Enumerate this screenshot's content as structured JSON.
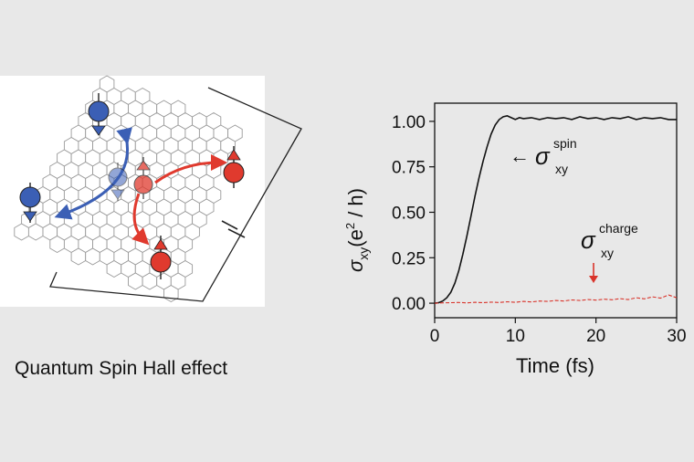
{
  "illustration": {
    "caption": "Quantum Spin Hall effect"
  },
  "chart_data": {
    "type": "line",
    "xlabel": "Time (fs)",
    "ylabel_symbol": "σ",
    "ylabel_sub": "xy",
    "ylabel_units_pre": "(e",
    "ylabel_units_sup": "2",
    "ylabel_units_post": " / h)",
    "xlim": [
      0,
      30
    ],
    "ylim": [
      -0.08,
      1.1
    ],
    "xticks": [
      0,
      10,
      20,
      30
    ],
    "xtick_labels": [
      "0",
      "10",
      "20",
      "30"
    ],
    "yticks": [
      0.0,
      0.25,
      0.5,
      0.75,
      1.0
    ],
    "ytick_labels": [
      "0.00",
      "0.25",
      "0.50",
      "0.75",
      "1.00"
    ],
    "grid": false,
    "series": [
      {
        "style": "solid",
        "color": "#111111",
        "x": [
          0,
          0.5,
          1,
          1.5,
          2,
          2.5,
          3,
          3.5,
          4,
          4.5,
          5,
          5.5,
          6,
          6.5,
          7,
          7.5,
          8,
          8.5,
          9,
          9.5,
          10,
          10.5,
          11,
          12,
          13,
          14,
          15,
          16,
          17,
          18,
          19,
          20,
          21,
          22,
          23,
          24,
          25,
          26,
          27,
          28,
          29,
          30
        ],
        "values": [
          0,
          0.003,
          0.012,
          0.03,
          0.06,
          0.11,
          0.18,
          0.27,
          0.37,
          0.48,
          0.59,
          0.69,
          0.78,
          0.86,
          0.93,
          0.98,
          1.01,
          1.025,
          1.03,
          1.02,
          1.01,
          1.02,
          1.015,
          1.02,
          1.01,
          1.02,
          1.015,
          1.02,
          1.01,
          1.025,
          1.015,
          1.02,
          1.01,
          1.02,
          1.015,
          1.025,
          1.01,
          1.02,
          1.015,
          1.02,
          1.01,
          1.01
        ],
        "label_symbol": "σ",
        "label_sub": "xy",
        "label_sup": "spin",
        "arrow": "←"
      },
      {
        "style": "dashed",
        "color": "#d9342b",
        "x": [
          0,
          1,
          2,
          3,
          4,
          5,
          6,
          7,
          8,
          9,
          10,
          11,
          12,
          13,
          14,
          15,
          16,
          17,
          18,
          19,
          20,
          21,
          22,
          23,
          24,
          25,
          26,
          27,
          28,
          29,
          30
        ],
        "values": [
          0,
          0.002,
          0.003,
          0.004,
          0.002,
          0.005,
          0.003,
          0.006,
          0.004,
          0.008,
          0.005,
          0.01,
          0.007,
          0.012,
          0.01,
          0.015,
          0.012,
          0.018,
          0.015,
          0.02,
          0.017,
          0.022,
          0.019,
          0.025,
          0.02,
          0.03,
          0.024,
          0.035,
          0.028,
          0.045,
          0.03
        ],
        "label_symbol": "σ",
        "label_sub": "xy",
        "label_sup": "charge"
      }
    ]
  },
  "colors": {
    "spin_down": "#3b5fb5",
    "spin_up": "#e03a2e",
    "lattice": "#9a9a9a",
    "background": "#e8e8e8"
  }
}
